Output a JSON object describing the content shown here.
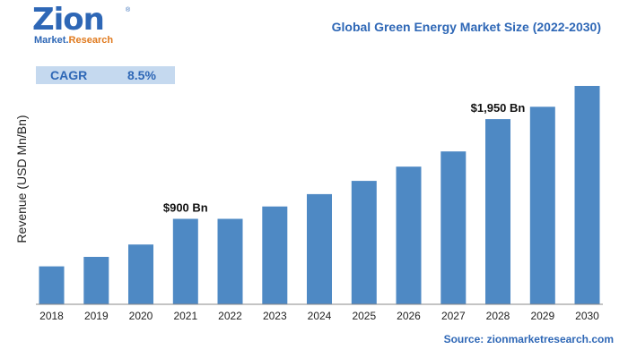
{
  "logo": {
    "name": "Zion",
    "registered": "®",
    "sub_market": "Market.",
    "sub_research": "Research"
  },
  "header": {
    "title": "Global Green Energy Market Size (2022-2030)"
  },
  "cagr": {
    "label": "CAGR",
    "value": "8.5%"
  },
  "footer": {
    "source": "Source: zionmarketresearch.com"
  },
  "colors": {
    "bar": "#4e89c4",
    "accent": "#2e67b6",
    "cagr_bg": "#c5d9ef",
    "logo_orange": "#e07a1e"
  },
  "chart_data": {
    "type": "bar",
    "title": "Global Green Energy Market Size (2022-2030)",
    "xlabel": "",
    "ylabel": "Revenue (USD Mn/Bn)",
    "categories": [
      "2018",
      "2019",
      "2020",
      "2021",
      "2022",
      "2023",
      "2024",
      "2025",
      "2026",
      "2027",
      "2028",
      "2029",
      "2030"
    ],
    "values": [
      400,
      500,
      630,
      900,
      900,
      1030,
      1160,
      1300,
      1450,
      1610,
      1950,
      2080,
      2300
    ],
    "ylim": [
      0,
      2300
    ],
    "grid": false,
    "annotations": [
      {
        "category": "2021",
        "text": "$900 Bn"
      },
      {
        "category": "2028",
        "text": "$1,950 Bn"
      }
    ]
  }
}
